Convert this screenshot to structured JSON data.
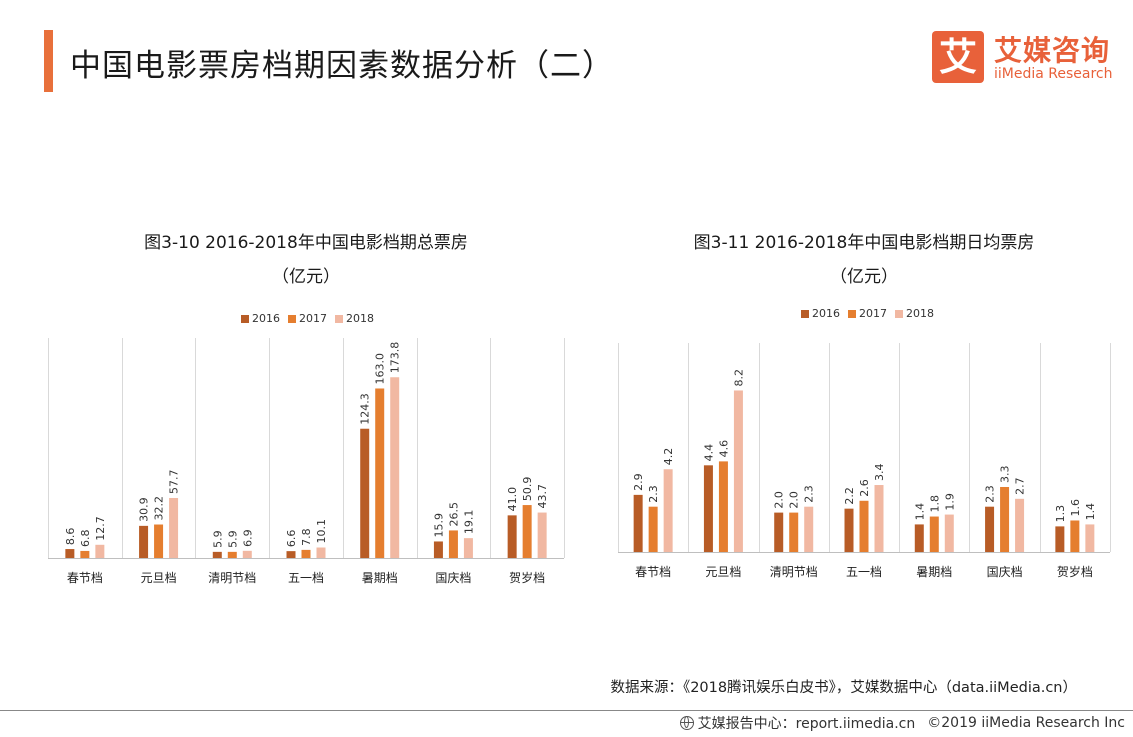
{
  "header": {
    "title": "中国电影票房档期因素数据分析（二）"
  },
  "logo": {
    "mark": "艾",
    "cn": "艾媒咨询",
    "en": "iiMedia Research"
  },
  "colors": {
    "accent": "#e8703b",
    "s2016": "#b85c26",
    "s2017": "#e57e2f",
    "s2018": "#f1b8a2",
    "grid": "#d9d9d9"
  },
  "chart_data": [
    {
      "type": "bar",
      "title": "图3-10 2016-2018年中国电影档期总票房",
      "subtitle": "（亿元）",
      "categories": [
        "春节档",
        "元旦档",
        "清明节档",
        "五一档",
        "暑期档",
        "国庆档",
        "贺岁档"
      ],
      "series": [
        {
          "name": "2016",
          "values": [
            8.6,
            30.9,
            5.9,
            6.6,
            124.3,
            15.9,
            41.0
          ]
        },
        {
          "name": "2017",
          "values": [
            6.8,
            32.2,
            5.9,
            7.8,
            163.0,
            26.5,
            50.9
          ]
        },
        {
          "name": "2018",
          "values": [
            12.7,
            57.7,
            6.9,
            10.1,
            173.8,
            19.1,
            43.7
          ]
        }
      ],
      "labels": [
        [
          "8.6",
          "30.9",
          "5.9",
          "6.6",
          "124.3",
          "15.9",
          "41.0"
        ],
        [
          "6.8",
          "32.2",
          "5.9",
          "7.8",
          "163.0",
          "26.5",
          "50.9"
        ],
        [
          "12.7",
          "57.7",
          "6.9",
          "10.1",
          "173.8",
          "19.1",
          "43.7"
        ]
      ],
      "ylim": [
        0,
        200
      ],
      "grid": "vertical separators",
      "legend": "top-center"
    },
    {
      "type": "bar",
      "title": "图3-11 2016-2018年中国电影档期日均票房",
      "subtitle": "（亿元）",
      "categories": [
        "春节档",
        "元旦档",
        "清明节档",
        "五一档",
        "暑期档",
        "国庆档",
        "贺岁档"
      ],
      "series": [
        {
          "name": "2016",
          "values": [
            2.9,
            4.4,
            2.0,
            2.2,
            1.4,
            2.3,
            1.3
          ]
        },
        {
          "name": "2017",
          "values": [
            2.3,
            4.6,
            2.0,
            2.6,
            1.8,
            3.3,
            1.6
          ]
        },
        {
          "name": "2018",
          "values": [
            4.2,
            8.2,
            2.3,
            3.4,
            1.9,
            2.7,
            1.4
          ]
        }
      ],
      "labels": [
        [
          "2.9",
          "4.4",
          "2.0",
          "2.2",
          "1.4",
          "2.3",
          "1.3"
        ],
        [
          "2.3",
          "4.6",
          "2.0",
          "2.6",
          "1.8",
          "3.3",
          "1.6"
        ],
        [
          "4.2",
          "8.2",
          "2.3",
          "3.4",
          "1.9",
          "2.7",
          "1.4"
        ]
      ],
      "ylim": [
        0,
        10
      ],
      "grid": "vertical separators",
      "legend": "top-center"
    }
  ],
  "source": "数据来源：《2018腾讯娱乐白皮书》，艾媒数据中心（data.iiMedia.cn）",
  "footer": {
    "brand": "艾媒报告中心：report.iimedia.cn",
    "copyright": "©2019  iiMedia Research  Inc"
  }
}
